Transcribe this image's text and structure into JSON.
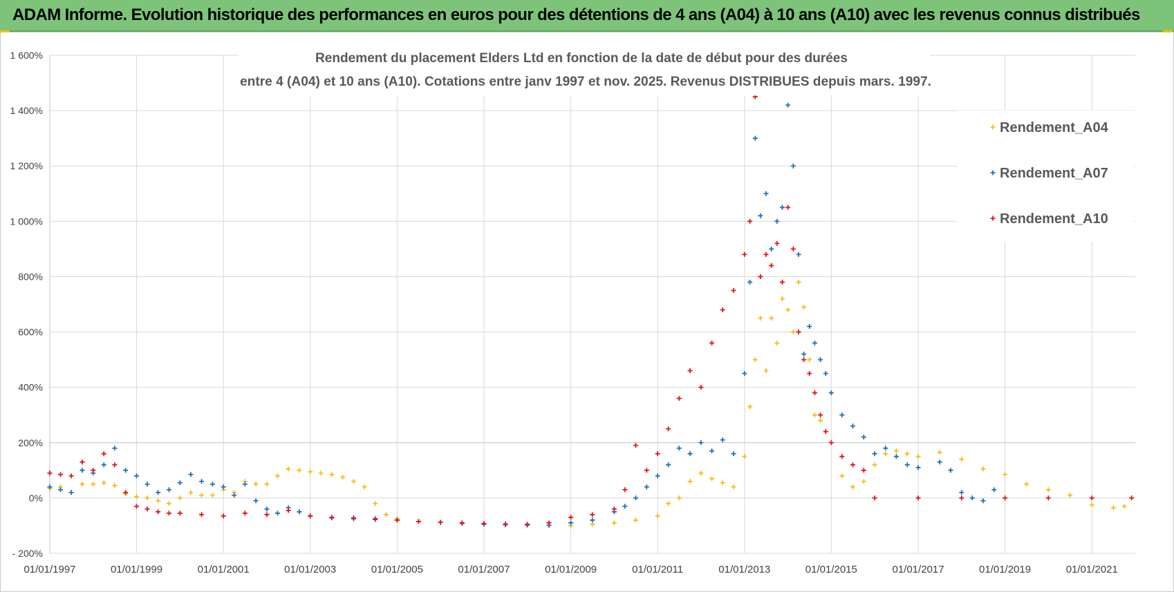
{
  "banner": {
    "title": "ADAM Informe. Evolution historique des performances en euros pour des détentions de 4 ans (A04) à 10 ans (A10) avec les revenus connus distribués"
  },
  "colors": {
    "banner": "#7dc47a",
    "A04": "#f5c018",
    "A07": "#1f72be",
    "A10": "#e8141e",
    "grid": "#d9d9d9"
  },
  "chart_data": {
    "type": "scatter",
    "title": "Rendement du placement Elders Ltd en fonction de la date de début pour des durées",
    "subtitle": "entre 4 (A04) et 10 ans (A10). Cotations entre janv 1997 et nov. 2025. Revenus DISTRIBUES depuis mars. 1997.",
    "xlabel": "",
    "ylabel": "",
    "x_type": "date",
    "xlim": [
      "1997-01-01",
      "2022-01-01"
    ],
    "ylim": [
      -200,
      1600
    ],
    "yticks": [
      "- 200%",
      "0%",
      "200%",
      "400%",
      "600%",
      "800%",
      "1 000%",
      "1 200%",
      "1 400%",
      "1 600%"
    ],
    "xticks": [
      "01/01/1997",
      "01/01/1999",
      "01/01/2001",
      "01/01/2003",
      "01/01/2005",
      "01/01/2007",
      "01/01/2009",
      "01/01/2011",
      "01/01/2013",
      "01/01/2015",
      "01/01/2017",
      "01/01/2019",
      "01/01/2021"
    ],
    "grid": true,
    "marker": "plus",
    "legend_position": "right",
    "series": [
      {
        "name": "Rendement_A04",
        "color": "#f5c018",
        "points": [
          [
            "1997-01-01",
            35
          ],
          [
            "1997-04-01",
            40
          ],
          [
            "1997-07-01",
            20
          ],
          [
            "1997-10-01",
            50
          ],
          [
            "1998-01-01",
            50
          ],
          [
            "1998-04-01",
            55
          ],
          [
            "1998-07-01",
            45
          ],
          [
            "1998-10-01",
            15
          ],
          [
            "1999-01-01",
            5
          ],
          [
            "1999-04-01",
            0
          ],
          [
            "1999-07-01",
            -10
          ],
          [
            "1999-10-01",
            -20
          ],
          [
            "2000-01-01",
            0
          ],
          [
            "2000-04-01",
            20
          ],
          [
            "2000-07-01",
            10
          ],
          [
            "2000-10-01",
            10
          ],
          [
            "2001-01-01",
            30
          ],
          [
            "2001-04-01",
            20
          ],
          [
            "2001-07-01",
            60
          ],
          [
            "2001-10-01",
            50
          ],
          [
            "2002-01-01",
            50
          ],
          [
            "2002-04-01",
            80
          ],
          [
            "2002-07-01",
            105
          ],
          [
            "2002-10-01",
            100
          ],
          [
            "2003-01-01",
            95
          ],
          [
            "2003-04-01",
            90
          ],
          [
            "2003-07-01",
            85
          ],
          [
            "2003-10-01",
            75
          ],
          [
            "2004-01-01",
            60
          ],
          [
            "2004-04-01",
            40
          ],
          [
            "2004-07-01",
            -20
          ],
          [
            "2004-10-01",
            -60
          ],
          [
            "2005-01-01",
            -75
          ],
          [
            "2005-07-01",
            -85
          ],
          [
            "2006-01-01",
            -88
          ],
          [
            "2006-07-01",
            -90
          ],
          [
            "2007-01-01",
            -92
          ],
          [
            "2007-07-01",
            -95
          ],
          [
            "2008-01-01",
            -97
          ],
          [
            "2008-07-01",
            -98
          ],
          [
            "2009-01-01",
            -100
          ],
          [
            "2009-07-01",
            -95
          ],
          [
            "2010-01-01",
            -90
          ],
          [
            "2010-07-01",
            -80
          ],
          [
            "2011-01-01",
            -65
          ],
          [
            "2011-04-01",
            -20
          ],
          [
            "2011-07-01",
            0
          ],
          [
            "2011-10-01",
            60
          ],
          [
            "2012-01-01",
            90
          ],
          [
            "2012-04-01",
            70
          ],
          [
            "2012-07-01",
            55
          ],
          [
            "2012-10-01",
            40
          ],
          [
            "2013-01-01",
            150
          ],
          [
            "2013-02-15",
            330
          ],
          [
            "2013-04-01",
            500
          ],
          [
            "2013-05-15",
            650
          ],
          [
            "2013-07-01",
            460
          ],
          [
            "2013-08-15",
            650
          ],
          [
            "2013-10-01",
            560
          ],
          [
            "2013-11-15",
            720
          ],
          [
            "2014-01-01",
            680
          ],
          [
            "2014-02-15",
            600
          ],
          [
            "2014-04-01",
            780
          ],
          [
            "2014-05-15",
            690
          ],
          [
            "2014-07-01",
            500
          ],
          [
            "2014-08-15",
            300
          ],
          [
            "2014-10-01",
            280
          ],
          [
            "2014-11-15",
            240
          ],
          [
            "2015-01-01",
            200
          ],
          [
            "2015-04-01",
            80
          ],
          [
            "2015-07-01",
            40
          ],
          [
            "2015-10-01",
            60
          ],
          [
            "2016-01-01",
            120
          ],
          [
            "2016-04-01",
            160
          ],
          [
            "2016-07-01",
            170
          ],
          [
            "2016-10-01",
            160
          ],
          [
            "2017-01-01",
            150
          ],
          [
            "2017-07-01",
            165
          ],
          [
            "2018-01-01",
            140
          ],
          [
            "2018-07-01",
            105
          ],
          [
            "2019-01-01",
            85
          ],
          [
            "2019-07-01",
            50
          ],
          [
            "2020-01-01",
            30
          ],
          [
            "2020-07-01",
            10
          ],
          [
            "2021-01-01",
            -25
          ],
          [
            "2021-07-01",
            -35
          ],
          [
            "2021-10-01",
            -30
          ]
        ]
      },
      {
        "name": "Rendement_A07",
        "color": "#1f72be",
        "points": [
          [
            "1997-01-01",
            40
          ],
          [
            "1997-04-01",
            30
          ],
          [
            "1997-07-01",
            20
          ],
          [
            "1997-10-01",
            100
          ],
          [
            "1998-01-01",
            90
          ],
          [
            "1998-04-01",
            120
          ],
          [
            "1998-07-01",
            180
          ],
          [
            "1998-10-01",
            100
          ],
          [
            "1999-01-01",
            80
          ],
          [
            "1999-04-01",
            50
          ],
          [
            "1999-07-01",
            20
          ],
          [
            "1999-10-01",
            30
          ],
          [
            "2000-01-01",
            55
          ],
          [
            "2000-04-01",
            85
          ],
          [
            "2000-07-01",
            60
          ],
          [
            "2000-10-01",
            50
          ],
          [
            "2001-01-01",
            40
          ],
          [
            "2001-04-01",
            10
          ],
          [
            "2001-07-01",
            50
          ],
          [
            "2001-10-01",
            -10
          ],
          [
            "2002-01-01",
            -40
          ],
          [
            "2002-04-01",
            -55
          ],
          [
            "2002-07-01",
            -35
          ],
          [
            "2002-10-01",
            -50
          ],
          [
            "2003-01-01",
            -65
          ],
          [
            "2003-07-01",
            -72
          ],
          [
            "2004-01-01",
            -75
          ],
          [
            "2004-07-01",
            -78
          ],
          [
            "2005-01-01",
            -80
          ],
          [
            "2005-07-01",
            -85
          ],
          [
            "2006-01-01",
            -88
          ],
          [
            "2006-07-01",
            -92
          ],
          [
            "2007-01-01",
            -95
          ],
          [
            "2007-07-01",
            -97
          ],
          [
            "2008-01-01",
            -98
          ],
          [
            "2008-07-01",
            -99
          ],
          [
            "2009-01-01",
            -90
          ],
          [
            "2009-07-01",
            -80
          ],
          [
            "2010-01-01",
            -50
          ],
          [
            "2010-04-01",
            -30
          ],
          [
            "2010-07-01",
            0
          ],
          [
            "2010-10-01",
            40
          ],
          [
            "2011-01-01",
            80
          ],
          [
            "2011-04-01",
            120
          ],
          [
            "2011-07-01",
            180
          ],
          [
            "2011-10-01",
            160
          ],
          [
            "2012-01-01",
            200
          ],
          [
            "2012-04-01",
            170
          ],
          [
            "2012-07-01",
            210
          ],
          [
            "2012-10-01",
            160
          ],
          [
            "2013-01-01",
            450
          ],
          [
            "2013-02-15",
            780
          ],
          [
            "2013-04-01",
            1300
          ],
          [
            "2013-05-15",
            1020
          ],
          [
            "2013-07-01",
            1100
          ],
          [
            "2013-08-15",
            900
          ],
          [
            "2013-10-01",
            1000
          ],
          [
            "2013-11-15",
            1050
          ],
          [
            "2014-01-01",
            1420
          ],
          [
            "2014-02-15",
            1200
          ],
          [
            "2014-04-01",
            880
          ],
          [
            "2014-05-15",
            520
          ],
          [
            "2014-07-01",
            620
          ],
          [
            "2014-08-15",
            560
          ],
          [
            "2014-10-01",
            500
          ],
          [
            "2014-11-15",
            450
          ],
          [
            "2015-01-01",
            380
          ],
          [
            "2015-04-01",
            300
          ],
          [
            "2015-07-01",
            260
          ],
          [
            "2015-10-01",
            220
          ],
          [
            "2016-01-01",
            160
          ],
          [
            "2016-04-01",
            180
          ],
          [
            "2016-07-01",
            150
          ],
          [
            "2016-10-01",
            120
          ],
          [
            "2017-01-01",
            110
          ],
          [
            "2017-07-01",
            130
          ],
          [
            "2017-10-01",
            100
          ],
          [
            "2018-01-01",
            20
          ],
          [
            "2018-04-01",
            0
          ],
          [
            "2018-07-01",
            -10
          ],
          [
            "2018-10-01",
            30
          ]
        ]
      },
      {
        "name": "Rendement_A10",
        "color": "#e8141e",
        "points": [
          [
            "1997-01-01",
            90
          ],
          [
            "1997-04-01",
            85
          ],
          [
            "1997-07-01",
            80
          ],
          [
            "1997-10-01",
            130
          ],
          [
            "1998-01-01",
            100
          ],
          [
            "1998-04-01",
            160
          ],
          [
            "1998-07-01",
            120
          ],
          [
            "1998-10-01",
            20
          ],
          [
            "1999-01-01",
            -30
          ],
          [
            "1999-04-01",
            -40
          ],
          [
            "1999-07-01",
            -50
          ],
          [
            "1999-10-01",
            -55
          ],
          [
            "2000-01-01",
            -55
          ],
          [
            "2000-07-01",
            -60
          ],
          [
            "2001-01-01",
            -65
          ],
          [
            "2001-07-01",
            -55
          ],
          [
            "2002-01-01",
            -60
          ],
          [
            "2002-07-01",
            -45
          ],
          [
            "2003-01-01",
            -65
          ],
          [
            "2003-07-01",
            -70
          ],
          [
            "2004-01-01",
            -72
          ],
          [
            "2004-07-01",
            -75
          ],
          [
            "2005-01-01",
            -80
          ],
          [
            "2005-07-01",
            -85
          ],
          [
            "2006-01-01",
            -88
          ],
          [
            "2006-07-01",
            -90
          ],
          [
            "2007-01-01",
            -92
          ],
          [
            "2007-07-01",
            -94
          ],
          [
            "2008-01-01",
            -95
          ],
          [
            "2008-07-01",
            -90
          ],
          [
            "2009-01-01",
            -70
          ],
          [
            "2009-07-01",
            -60
          ],
          [
            "2010-01-01",
            -40
          ],
          [
            "2010-04-01",
            30
          ],
          [
            "2010-07-01",
            190
          ],
          [
            "2010-10-01",
            100
          ],
          [
            "2011-01-01",
            160
          ],
          [
            "2011-04-01",
            250
          ],
          [
            "2011-07-01",
            360
          ],
          [
            "2011-10-01",
            460
          ],
          [
            "2012-01-01",
            400
          ],
          [
            "2012-04-01",
            560
          ],
          [
            "2012-07-01",
            680
          ],
          [
            "2012-10-01",
            750
          ],
          [
            "2013-01-01",
            880
          ],
          [
            "2013-02-15",
            1000
          ],
          [
            "2013-04-01",
            1450
          ],
          [
            "2013-05-15",
            800
          ],
          [
            "2013-07-01",
            880
          ],
          [
            "2013-08-15",
            840
          ],
          [
            "2013-10-01",
            920
          ],
          [
            "2013-11-15",
            780
          ],
          [
            "2014-01-01",
            1050
          ],
          [
            "2014-02-15",
            900
          ],
          [
            "2014-04-01",
            600
          ],
          [
            "2014-05-15",
            500
          ],
          [
            "2014-07-01",
            450
          ],
          [
            "2014-08-15",
            380
          ],
          [
            "2014-10-01",
            300
          ],
          [
            "2014-11-15",
            240
          ],
          [
            "2015-01-01",
            200
          ],
          [
            "2015-04-01",
            150
          ],
          [
            "2015-07-01",
            120
          ],
          [
            "2015-10-01",
            100
          ],
          [
            "2016-01-01",
            0
          ],
          [
            "2017-01-01",
            0
          ],
          [
            "2018-01-01",
            0
          ],
          [
            "2019-01-01",
            0
          ],
          [
            "2020-01-01",
            0
          ],
          [
            "2021-01-01",
            0
          ],
          [
            "2021-12-01",
            0
          ]
        ]
      }
    ]
  }
}
